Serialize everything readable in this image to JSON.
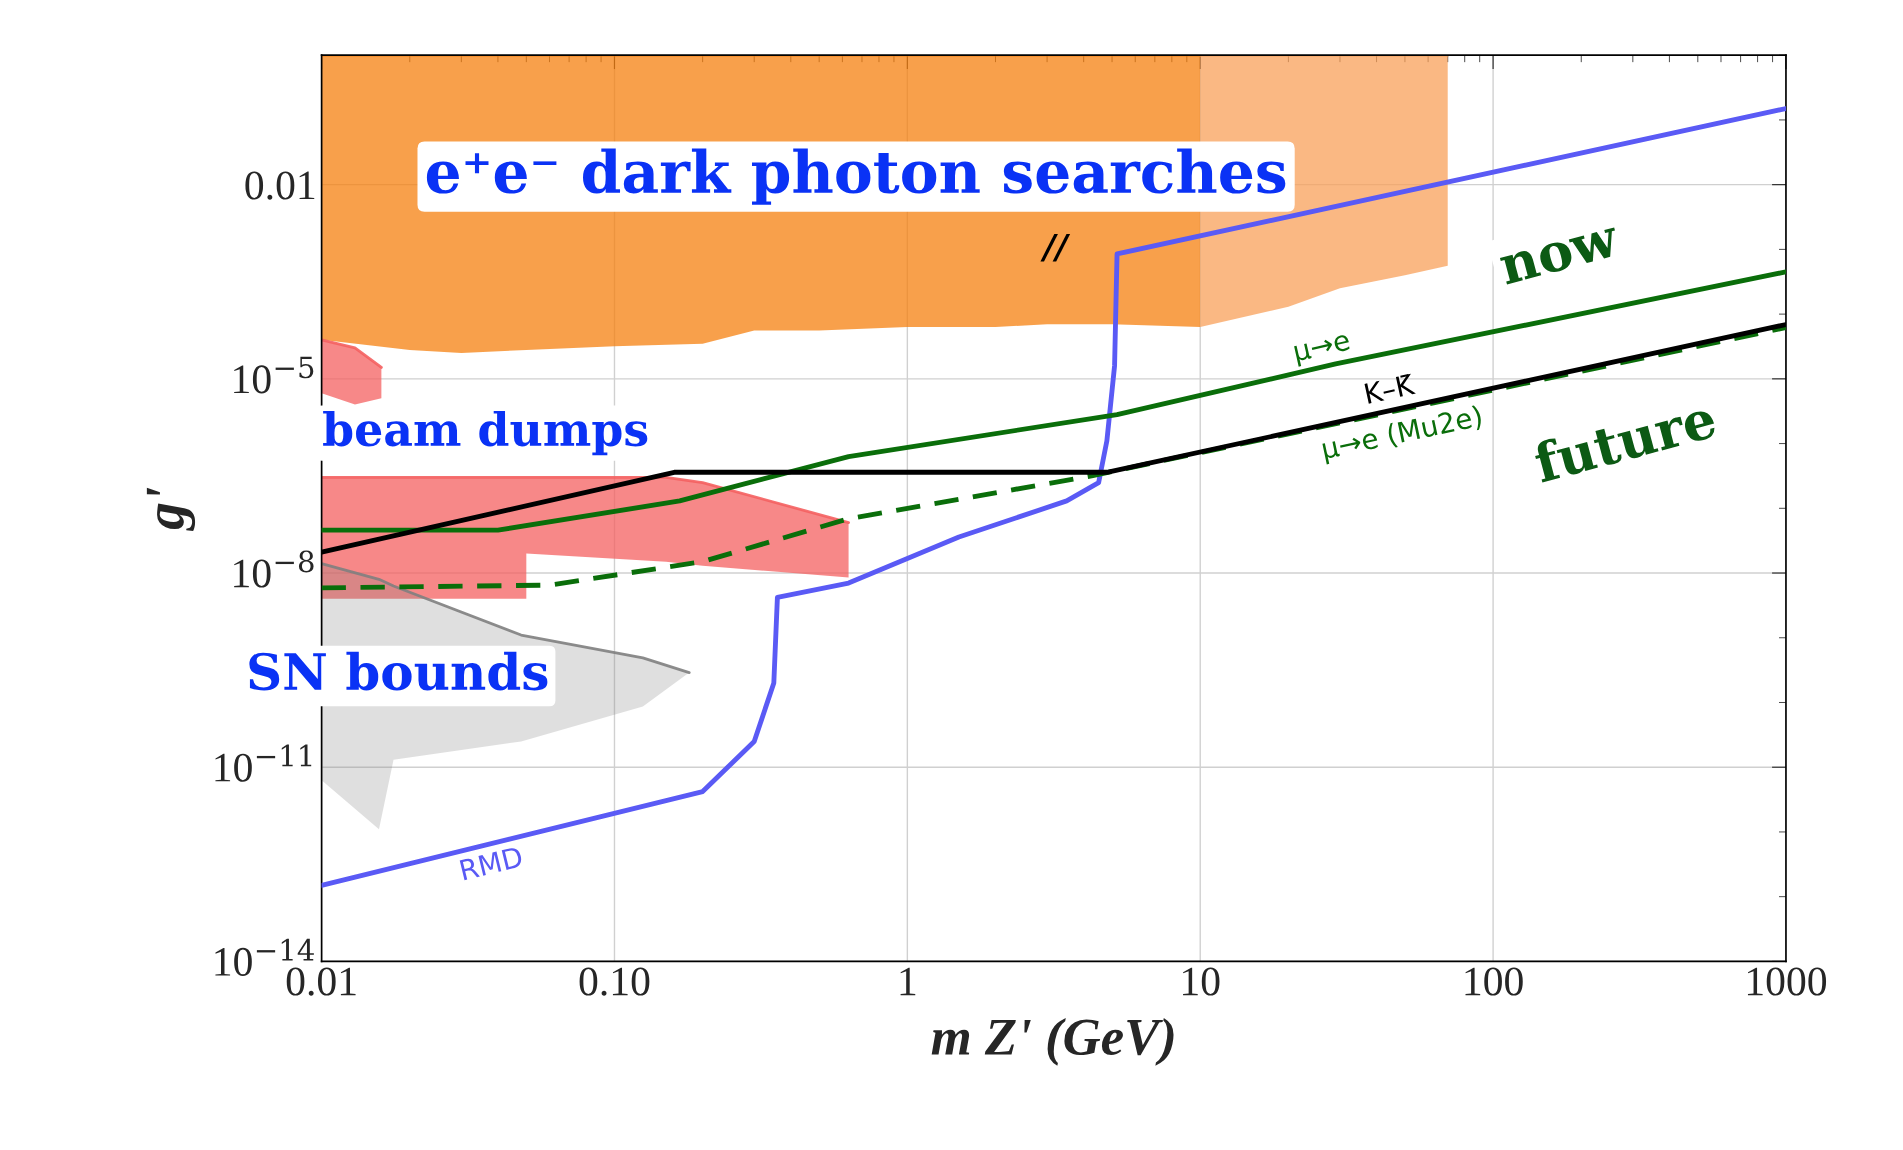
{
  "chart_data": {
    "type": "line",
    "xlabel": "m Z' (GeV)",
    "ylabel": "g'",
    "log": "xy",
    "grid": true,
    "legend": false,
    "xlim": [
      0.01,
      1000
    ],
    "ylim": [
      1e-14,
      1
    ],
    "xticks": [
      {
        "value": 0.01,
        "label": "0.01"
      },
      {
        "value": 0.1,
        "label": "0.10"
      },
      1,
      10,
      100,
      1000
    ],
    "yticks": [
      {
        "value": 1e-14,
        "label": "10$^{−14}$"
      },
      {
        "value": 1e-11,
        "label": "10$^{−11}$"
      },
      {
        "value": 1e-08,
        "label": "10$^{−8}$"
      },
      {
        "value": 1e-05,
        "label": "10$^{−5}$"
      },
      {
        "value": 0.01,
        "label": "0.01"
      }
    ],
    "series": [
      {
        "type": "line",
        "color": "#f5800f",
        "x": [
          0.01,
          0.02,
          0.03,
          0.05,
          0.1,
          0.2,
          0.3,
          0.5,
          1,
          2,
          3,
          5,
          10
        ],
        "values": [
          1,
          1,
          1,
          1,
          1,
          1,
          1,
          1,
          1,
          1,
          1,
          1,
          1
        ],
        "upper": [
          1,
          1,
          1,
          1,
          1,
          1,
          1,
          1,
          1,
          1,
          1,
          1,
          1
        ],
        "lower": [
          4e-05,
          2.8e-05,
          2.5e-05,
          2.8e-05,
          3.2e-05,
          3.5e-05,
          5.6e-05,
          5.6e-05,
          6.3e-05,
          6.3e-05,
          7e-05,
          7e-05,
          6.3e-05
        ]
      },
      {
        "type": "line",
        "color": "#f8a05a",
        "x": [
          10,
          20,
          30,
          50,
          70
        ],
        "values": [
          1,
          1,
          1,
          1,
          1
        ],
        "upper": [
          1,
          1,
          1,
          1,
          1
        ],
        "lower": [
          6.3e-05,
          0.00013,
          0.00025,
          0.0004,
          0.00056
        ]
      },
      {
        "type": "line",
        "color": "#f46060",
        "x": [
          0.01,
          0.013,
          0.016
        ],
        "values": [
          4e-05,
          3e-05,
          1.5e-05
        ],
        "upper": [
          4e-05,
          3e-05,
          1.5e-05
        ],
        "lower": [
          6e-06,
          4e-06,
          5e-06
        ]
      },
      {
        "type": "line",
        "color": "#f46060",
        "x": [
          0.01,
          0.05,
          0.05,
          0.15,
          0.2,
          0.63
        ],
        "values": [
          3e-07,
          3e-07,
          3e-07,
          3e-07,
          2.5e-07,
          6e-08
        ],
        "upper": [
          3e-07,
          3e-07,
          3e-07,
          3e-07,
          2.5e-07,
          6e-08
        ],
        "lower": [
          4e-09,
          4e-09,
          2e-08,
          1.5e-08,
          1.3e-08,
          8.5e-09
        ]
      },
      {
        "type": "line",
        "color": "#808080",
        "x": [
          0.01,
          0.0157,
          0.0176,
          0.048,
          0.125,
          0.18
        ],
        "values": [
          1.4e-08,
          8e-09,
          6.3e-09,
          1.1e-09,
          4.9e-10,
          2.9e-10
        ],
        "upper": [
          1.4e-08,
          8e-09,
          6.3e-09,
          1.1e-09,
          4.9e-10,
          2.9e-10
        ],
        "lower": [
          6.3e-12,
          1.1e-12,
          1.3e-11,
          2.5e-11,
          8.7e-11,
          2.9e-10
        ]
      },
      {
        "type": "line",
        "name": "RMD",
        "color": "#5a5af5",
        "line_style": "solid",
        "x": [
          0.01,
          0.2,
          0.3,
          0.35,
          0.36,
          0.63,
          1.5,
          3.5,
          4.5,
          4.8,
          5.1,
          5.2,
          1000
        ],
        "values": [
          1.5e-13,
          4.2e-12,
          2.5e-11,
          2e-10,
          4.2e-09,
          7e-09,
          3.6e-08,
          1.3e-07,
          2.5e-07,
          1.1e-06,
          1.6e-05,
          0.00085,
          0.15
        ]
      },
      {
        "type": "line",
        "name": "μ→e",
        "color": "#0a6e0a",
        "line_style": "solid",
        "x": [
          0.01,
          0.04,
          0.167,
          0.63,
          5.2,
          29,
          1000
        ],
        "values": [
          4.6e-08,
          4.6e-08,
          1.3e-07,
          6.3e-07,
          2.8e-06,
          1.7e-05,
          0.00045
        ]
      },
      {
        "type": "line",
        "name": "μ→e (Mu2e)",
        "color": "#0a6e0a",
        "line_style": "dashed",
        "x": [
          0.01,
          0.06,
          0.2,
          0.63,
          4.3,
          1000
        ],
        "values": [
          5.9e-09,
          6.5e-09,
          1.5e-08,
          6.9e-08,
          3.2e-07,
          6.2e-05
        ]
      },
      {
        "type": "line",
        "name": "K–K̄",
        "color": "#000000",
        "line_style": "solid",
        "x": [
          0.01,
          0.16,
          4.8,
          1000
        ],
        "values": [
          2.1e-08,
          3.6e-07,
          3.6e-07,
          6.9e-05
        ]
      }
    ],
    "annotations": [
      "e⁺e⁻ dark photon searches",
      "beam dumps",
      "SN bounds",
      "now",
      "future",
      "//"
    ]
  }
}
